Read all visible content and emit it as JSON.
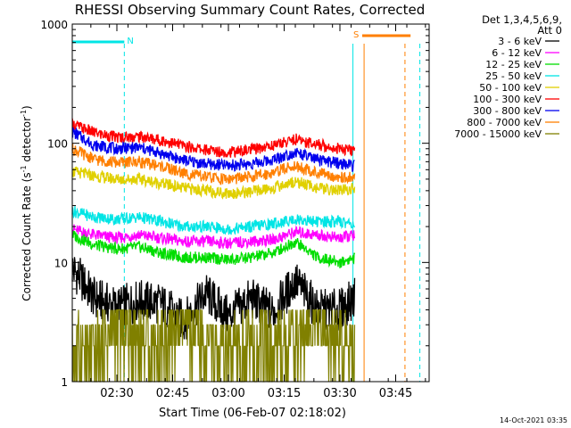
{
  "chart_data": {
    "type": "line",
    "title": "RHESSI Observing Summary Count Rates, Corrected",
    "xlabel": "Start Time (06-Feb-07 02:18:02)",
    "ylabel": "Corrected Count Rate (s",
    "ylabel_sup": "-1",
    "ylabel_mid": " detector",
    "ylabel_sup2": "-1",
    "ylabel_end": ")",
    "yscale": "log",
    "ylim": [
      1,
      1000
    ],
    "xlim_minutes": [
      0,
      96
    ],
    "x_ticks": [
      {
        "label": "02:30",
        "minute": 12
      },
      {
        "label": "02:45",
        "minute": 27
      },
      {
        "label": "03:00",
        "minute": 42
      },
      {
        "label": "03:15",
        "minute": 57
      },
      {
        "label": "03:30",
        "minute": 72
      },
      {
        "label": "03:45",
        "minute": 87
      }
    ],
    "y_ticks": [
      {
        "label": "1",
        "value": 1
      },
      {
        "label": "10",
        "value": 10
      },
      {
        "label": "100",
        "value": 100
      },
      {
        "label": "1000",
        "value": 1000
      }
    ],
    "legend": {
      "header1": "Det 1,3,4,5,6,9,",
      "header2": "Att 0",
      "placement": "right"
    },
    "series": [
      {
        "name": "3 - 6 keV",
        "color": "#000000",
        "minutes": [
          0,
          6,
          12,
          18,
          24,
          30,
          36,
          42,
          48,
          54,
          60,
          66,
          72,
          76
        ],
        "values": [
          9,
          5,
          4.2,
          4.8,
          4.5,
          3.2,
          5.5,
          3.5,
          5,
          3.8,
          7,
          4,
          4,
          5
        ]
      },
      {
        "name": "6 - 12 keV",
        "color": "#ff00ff",
        "minutes": [
          0,
          6,
          12,
          18,
          24,
          30,
          36,
          42,
          48,
          54,
          60,
          66,
          72,
          76
        ],
        "values": [
          19,
          17,
          16,
          17,
          16,
          15,
          15,
          14.5,
          15,
          15.5,
          18,
          17,
          16,
          17
        ]
      },
      {
        "name": "12 - 25 keV",
        "color": "#00dd00",
        "minutes": [
          0,
          6,
          12,
          18,
          24,
          30,
          36,
          42,
          48,
          54,
          60,
          66,
          72,
          76
        ],
        "values": [
          17,
          14,
          13,
          13.5,
          12,
          11,
          11,
          10.5,
          11,
          12,
          15,
          11,
          10,
          11
        ]
      },
      {
        "name": "25 - 50 keV",
        "color": "#00e5e5",
        "minutes": [
          0,
          6,
          12,
          18,
          24,
          30,
          36,
          42,
          48,
          54,
          60,
          66,
          72,
          76
        ],
        "values": [
          27,
          24,
          23,
          24,
          22,
          20,
          20,
          19,
          20,
          21,
          23,
          22,
          22,
          21
        ]
      },
      {
        "name": "50 - 100 keV",
        "color": "#e0d000",
        "minutes": [
          0,
          6,
          12,
          18,
          24,
          30,
          36,
          42,
          48,
          54,
          60,
          66,
          72,
          76
        ],
        "values": [
          58,
          53,
          50,
          50,
          46,
          42,
          40,
          38,
          39,
          42,
          48,
          42,
          40,
          42
        ]
      },
      {
        "name": "100 - 300 keV",
        "color": "#ff0000",
        "minutes": [
          0,
          6,
          12,
          18,
          24,
          30,
          36,
          42,
          48,
          54,
          60,
          66,
          72,
          76
        ],
        "values": [
          145,
          122,
          112,
          114,
          106,
          95,
          88,
          84,
          88,
          96,
          108,
          98,
          90,
          85
        ]
      },
      {
        "name": "300 - 800 keV",
        "color": "#0000ee",
        "minutes": [
          0,
          6,
          12,
          18,
          24,
          30,
          36,
          42,
          48,
          54,
          60,
          66,
          72,
          76
        ],
        "values": [
          125,
          96,
          90,
          92,
          82,
          72,
          67,
          65,
          67,
          73,
          84,
          72,
          68,
          64
        ]
      },
      {
        "name": "800 - 7000 keV",
        "color": "#ff7f00",
        "minutes": [
          0,
          6,
          12,
          18,
          24,
          30,
          36,
          42,
          48,
          54,
          60,
          66,
          72,
          76
        ],
        "values": [
          90,
          73,
          69,
          70,
          64,
          56,
          52,
          50,
          52,
          57,
          65,
          56,
          52,
          51
        ]
      },
      {
        "name": "7000 - 15000 keV",
        "color": "#808000",
        "minutes": [
          0,
          6,
          12,
          18,
          24,
          30,
          36,
          42,
          48,
          54,
          60,
          66,
          72,
          76
        ],
        "values": [
          2,
          1.5,
          3,
          2.5,
          2,
          3,
          2,
          1.5,
          2,
          2,
          2.5,
          3,
          2,
          1.5
        ]
      }
    ],
    "annotations": [
      {
        "text": "N",
        "color": "#00e5e5",
        "start_minute": 0,
        "end_minute": 14
      },
      {
        "text": "S",
        "color": "#ff7f00",
        "start_minute": 78,
        "end_minute": 91
      }
    ],
    "grid": false
  },
  "footer": {
    "timestamp": "14-Oct-2021 03:35"
  }
}
